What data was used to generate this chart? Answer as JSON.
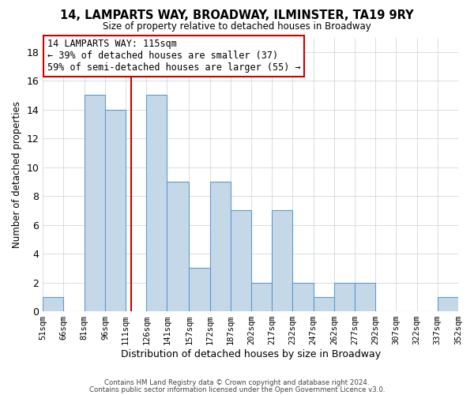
{
  "title": "14, LAMPARTS WAY, BROADWAY, ILMINSTER, TA19 9RY",
  "subtitle": "Size of property relative to detached houses in Broadway",
  "xlabel": "Distribution of detached houses by size in Broadway",
  "ylabel": "Number of detached properties",
  "bin_edges": [
    51,
    66,
    81,
    96,
    111,
    126,
    141,
    157,
    172,
    187,
    202,
    217,
    232,
    247,
    262,
    277,
    292,
    307,
    322,
    337,
    352
  ],
  "bin_labels": [
    "51sqm",
    "66sqm",
    "81sqm",
    "96sqm",
    "111sqm",
    "126sqm",
    "141sqm",
    "157sqm",
    "172sqm",
    "187sqm",
    "202sqm",
    "217sqm",
    "232sqm",
    "247sqm",
    "262sqm",
    "277sqm",
    "292sqm",
    "307sqm",
    "322sqm",
    "337sqm",
    "352sqm"
  ],
  "counts": [
    1,
    0,
    15,
    14,
    0,
    15,
    9,
    3,
    9,
    7,
    2,
    7,
    2,
    1,
    2,
    2,
    0,
    0,
    0,
    1
  ],
  "bar_color": "#c5d8e8",
  "bar_edge_color": "#5b9bd5",
  "vline_x": 115,
  "vline_color": "#cc0000",
  "ylim": [
    0,
    19
  ],
  "yticks": [
    0,
    2,
    4,
    6,
    8,
    10,
    12,
    14,
    16,
    18
  ],
  "annotation_line1": "14 LAMPARTS WAY: 115sqm",
  "annotation_line2": "← 39% of detached houses are smaller (37)",
  "annotation_line3": "59% of semi-detached houses are larger (55) →",
  "annotation_box_color": "#ffffff",
  "annotation_box_edge": "#cc0000",
  "footer1": "Contains HM Land Registry data © Crown copyright and database right 2024.",
  "footer2": "Contains public sector information licensed under the Open Government Licence v3.0.",
  "background_color": "#ffffff",
  "grid_color": "#c8d0d8"
}
